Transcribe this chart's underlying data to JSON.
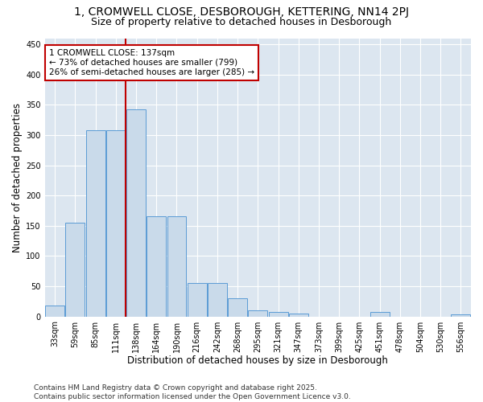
{
  "title_line1": "1, CROMWELL CLOSE, DESBOROUGH, KETTERING, NN14 2PJ",
  "title_line2": "Size of property relative to detached houses in Desborough",
  "xlabel": "Distribution of detached houses by size in Desborough",
  "ylabel": "Number of detached properties",
  "bar_categories": [
    "33sqm",
    "59sqm",
    "85sqm",
    "111sqm",
    "138sqm",
    "164sqm",
    "190sqm",
    "216sqm",
    "242sqm",
    "268sqm",
    "295sqm",
    "321sqm",
    "347sqm",
    "373sqm",
    "399sqm",
    "425sqm",
    "451sqm",
    "478sqm",
    "504sqm",
    "530sqm",
    "556sqm"
  ],
  "bar_values": [
    18,
    155,
    308,
    308,
    343,
    165,
    165,
    55,
    55,
    30,
    10,
    7,
    5,
    0,
    0,
    0,
    7,
    0,
    0,
    0,
    3
  ],
  "bar_color": "#c9daea",
  "bar_edge_color": "#5b9bd5",
  "property_line_bin_index": 4,
  "annotation_line1": "1 CROMWELL CLOSE: 137sqm",
  "annotation_line2": "← 73% of detached houses are smaller (799)",
  "annotation_line3": "26% of semi-detached houses are larger (285) →",
  "annotation_box_color": "#ffffff",
  "annotation_box_edge_color": "#c00000",
  "property_line_color": "#c00000",
  "background_color": "#dce6f0",
  "plot_bg_color": "#dce6f0",
  "grid_color": "#ffffff",
  "footer_line1": "Contains HM Land Registry data © Crown copyright and database right 2025.",
  "footer_line2": "Contains public sector information licensed under the Open Government Licence v3.0.",
  "ylim": [
    0,
    460
  ],
  "title_fontsize": 10,
  "subtitle_fontsize": 9,
  "axis_label_fontsize": 8.5,
  "tick_fontsize": 7,
  "annotation_fontsize": 7.5,
  "footer_fontsize": 6.5
}
